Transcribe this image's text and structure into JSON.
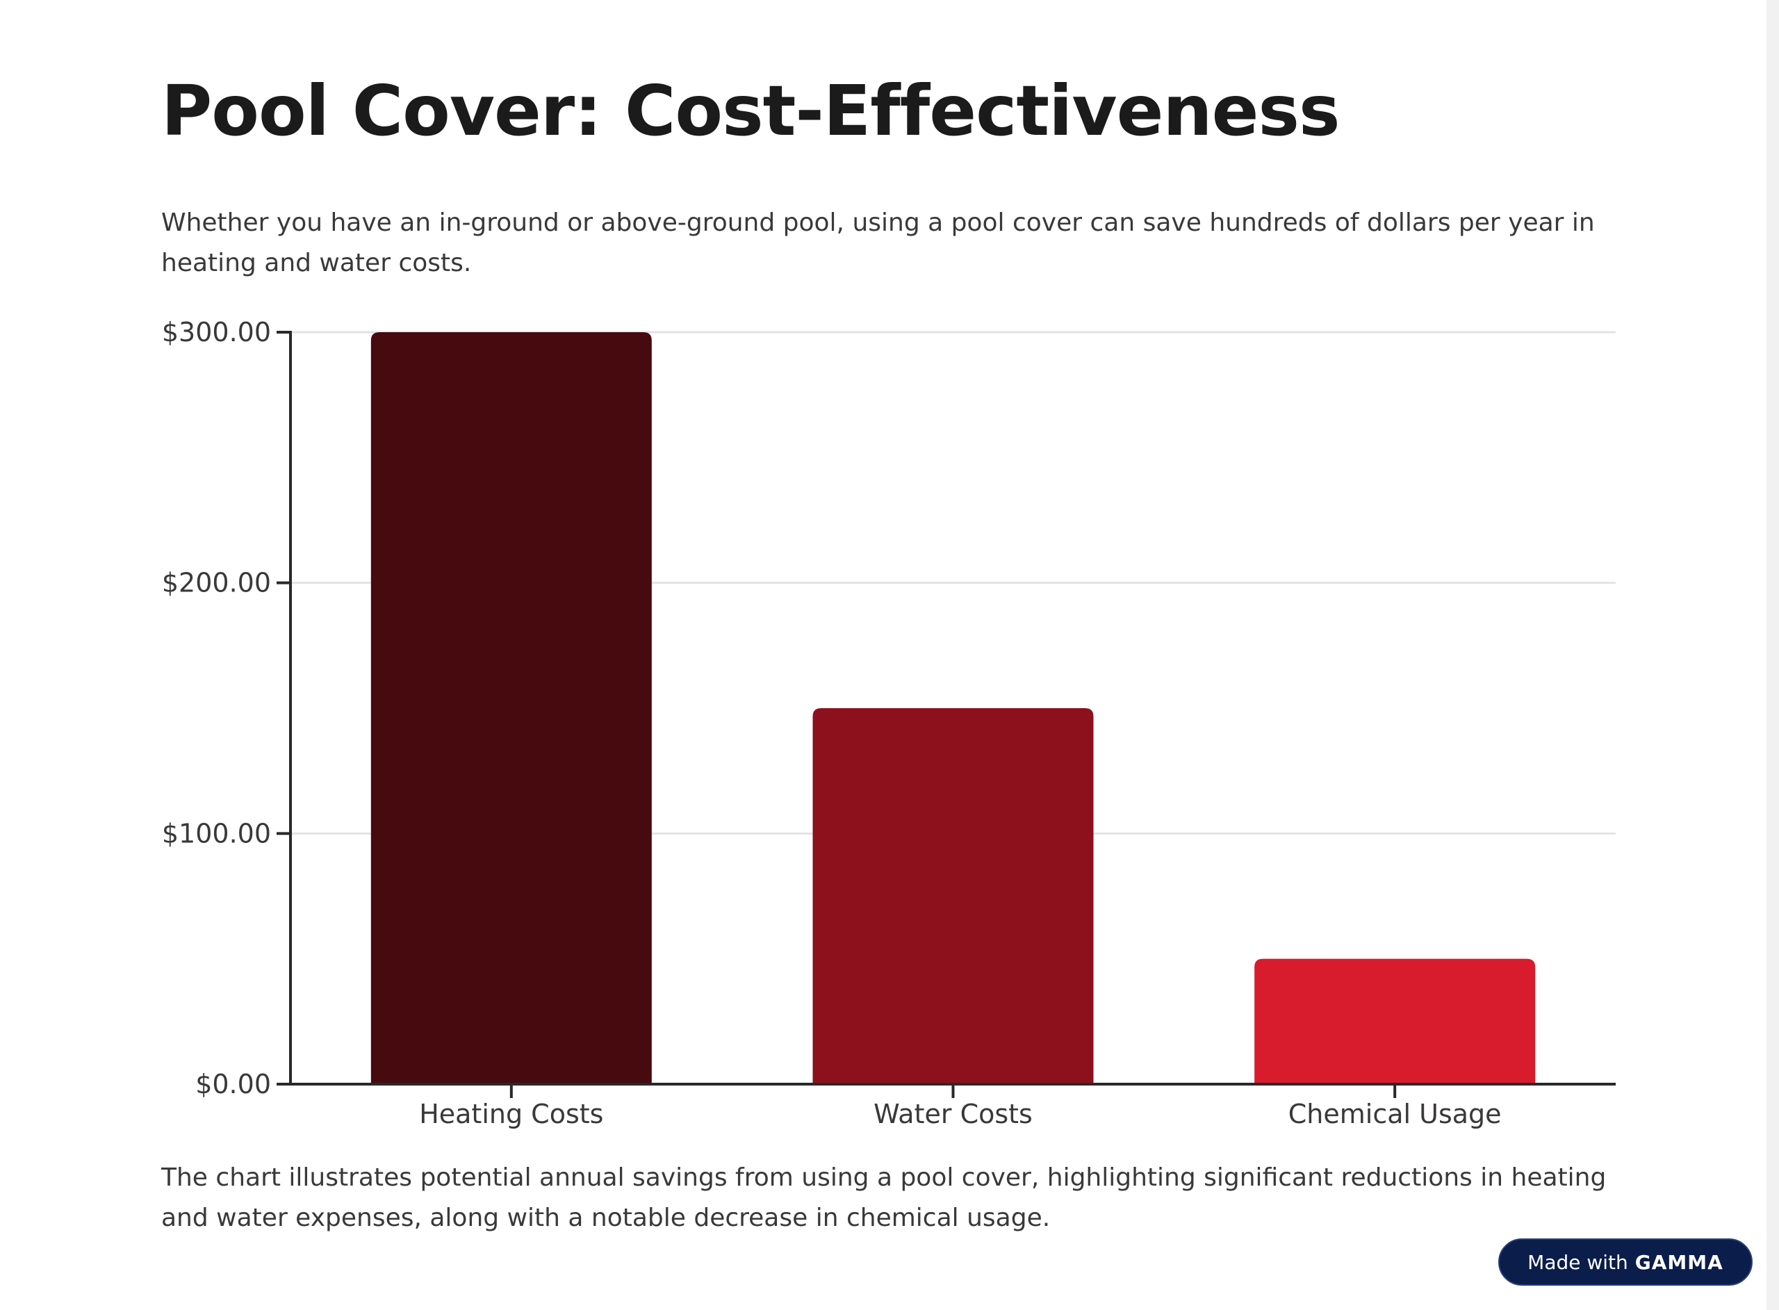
{
  "title": "Pool Cover: Cost-Effectiveness",
  "intro": "Whether you have an in-ground or above-ground pool, using a pool cover can save hundreds of dollars per year in heating and water costs.",
  "caption": "The chart illustrates potential annual savings from using a pool cover, highlighting significant reductions in heating and water expenses, along with a notable decrease in chemical usage.",
  "badge": {
    "made_with": "Made with",
    "brand": "GAMMA"
  },
  "colors": {
    "heating": "#470a0f",
    "water": "#8d101d",
    "chemical": "#d91b2e",
    "axis": "#2a2828",
    "grid": "#e3e3e3"
  },
  "chart_data": {
    "type": "bar",
    "categories": [
      "Heating Costs",
      "Water Costs",
      "Chemical Usage"
    ],
    "values": [
      300,
      150,
      50
    ],
    "ylim": [
      0,
      300
    ],
    "yticks": [
      0,
      100,
      200,
      300
    ],
    "ytick_labels": [
      "$0.00",
      "$100.00",
      "$200.00",
      "$300.00"
    ],
    "grid": true,
    "xlabel": "",
    "ylabel": ""
  }
}
